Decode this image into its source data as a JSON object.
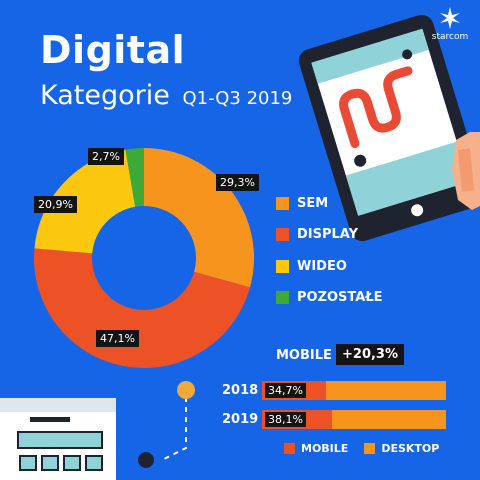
{
  "header": {
    "title": "Digital",
    "subtitle": "Kategorie",
    "period": "Q1-Q3 2019"
  },
  "brand": {
    "name": "starcom"
  },
  "colors": {
    "background": "#1565e6",
    "sem": "#f7941d",
    "display": "#ed5126",
    "wideo": "#fcc70f",
    "pozostale": "#3ea838",
    "label_bg": "#141414"
  },
  "chart_data": [
    {
      "type": "pie",
      "title": "",
      "categories": [
        "SEM",
        "DISPLAY",
        "WIDEO",
        "POZOSTAŁE"
      ],
      "values": [
        29.3,
        47.1,
        20.9,
        2.7
      ],
      "value_labels": [
        "29,3%",
        "47,1%",
        "20,9%",
        "2,7%"
      ],
      "colors": [
        "#f7941d",
        "#ed5126",
        "#fcc70f",
        "#3ea838"
      ],
      "donut": true,
      "legend_position": "right"
    },
    {
      "type": "bar",
      "orientation": "horizontal",
      "stacked": true,
      "title": "MOBILE",
      "annotation": "+20,3%",
      "categories": [
        "2018",
        "2019"
      ],
      "series": [
        {
          "name": "MOBILE",
          "values": [
            34.7,
            38.1
          ],
          "value_labels": [
            "34,7%",
            "38,1%"
          ],
          "color": "#ed5126"
        },
        {
          "name": "DESKTOP",
          "values": [
            65.3,
            61.9
          ],
          "color": "#f7941d"
        }
      ],
      "legend_position": "bottom"
    }
  ]
}
